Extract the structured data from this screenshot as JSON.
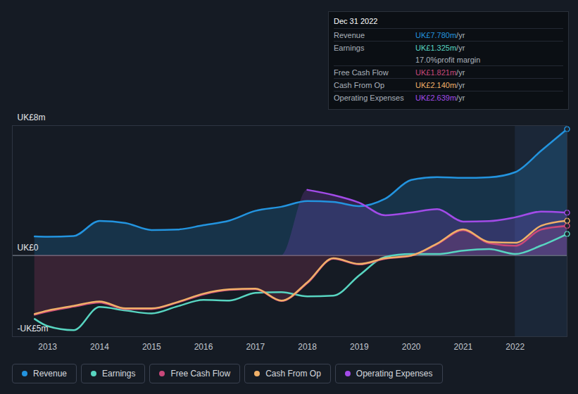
{
  "chart_data": {
    "type": "line",
    "x": [
      2012.75,
      2013.0,
      2013.5,
      2014.0,
      2014.5,
      2015.0,
      2015.5,
      2016.0,
      2016.5,
      2017.0,
      2017.5,
      2018.0,
      2018.5,
      2019.0,
      2019.5,
      2020.0,
      2020.5,
      2021.0,
      2021.5,
      2022.0,
      2022.5,
      2023.0
    ],
    "xlim": [
      2012.32,
      2023.0
    ],
    "xticks": [
      2013,
      2014,
      2015,
      2016,
      2017,
      2018,
      2019,
      2020,
      2021,
      2022
    ],
    "ylim": [
      -5,
      8
    ],
    "yticks": [
      {
        "value": -5,
        "label": "-UK£5m"
      },
      {
        "value": 0,
        "label": "UK£0"
      },
      {
        "value": 8,
        "label": "UK£8m"
      }
    ],
    "grid": true,
    "legend": "bottom",
    "highlight_x": [
      2022.0,
      2023.0
    ],
    "series": [
      {
        "name": "Revenue",
        "color": "#2394df",
        "type": "area",
        "values": [
          1.17,
          1.15,
          1.2,
          2.13,
          2.0,
          1.57,
          1.6,
          1.87,
          2.15,
          2.75,
          3.0,
          3.35,
          3.3,
          3.04,
          3.5,
          4.65,
          4.83,
          4.78,
          4.82,
          5.13,
          6.45,
          7.78
        ]
      },
      {
        "name": "Earnings",
        "color": "#58d5c1",
        "type": "line",
        "values": [
          -3.91,
          -4.35,
          -4.6,
          -3.17,
          -3.39,
          -3.57,
          -3.13,
          -2.74,
          -2.78,
          -2.3,
          -2.26,
          -2.52,
          -2.48,
          -1.22,
          -0.09,
          0.09,
          0.09,
          0.3,
          0.39,
          0.09,
          0.61,
          1.325
        ]
      },
      {
        "name": "Free Cash Flow",
        "color": "#c9487a",
        "type": "area",
        "values": [
          -3.65,
          -3.45,
          -3.15,
          -2.9,
          -3.3,
          -3.3,
          -2.9,
          -2.4,
          -2.12,
          -2.08,
          -2.8,
          -1.7,
          -0.2,
          -0.55,
          -0.2,
          -0.02,
          0.7,
          1.55,
          0.75,
          0.6,
          1.6,
          1.821
        ]
      },
      {
        "name": "Cash From Op",
        "color": "#f0b068",
        "type": "line",
        "values": [
          -3.6,
          -3.39,
          -3.1,
          -2.83,
          -3.26,
          -3.26,
          -2.87,
          -2.35,
          -2.09,
          -2.04,
          -2.78,
          -1.65,
          -0.17,
          -0.52,
          -0.17,
          0.0,
          0.74,
          1.61,
          0.83,
          0.78,
          1.83,
          2.14
        ]
      },
      {
        "name": "Operating Expenses",
        "color": "#a24be8",
        "type": "area",
        "values": [
          null,
          null,
          null,
          null,
          null,
          null,
          null,
          null,
          null,
          null,
          null,
          4.04,
          3.72,
          3.25,
          2.48,
          2.65,
          2.85,
          2.09,
          2.12,
          2.35,
          2.7,
          2.639
        ]
      }
    ],
    "tooltip": {
      "title": "Dec 31 2022",
      "rows": [
        {
          "label": "Revenue",
          "value": "UK£7.780m",
          "unit": "/yr"
        },
        {
          "label": "Earnings",
          "value": "UK£1.325m",
          "unit": "/yr"
        },
        {
          "value": "17.0%",
          "unit": "profit margin"
        },
        {
          "label": "Free Cash Flow",
          "value": "UK£1.821m",
          "unit": "/yr"
        },
        {
          "label": "Cash From Op",
          "value": "UK£2.140m",
          "unit": "/yr"
        },
        {
          "label": "Operating Expenses",
          "value": "UK£2.639m",
          "unit": "/yr"
        }
      ]
    }
  }
}
